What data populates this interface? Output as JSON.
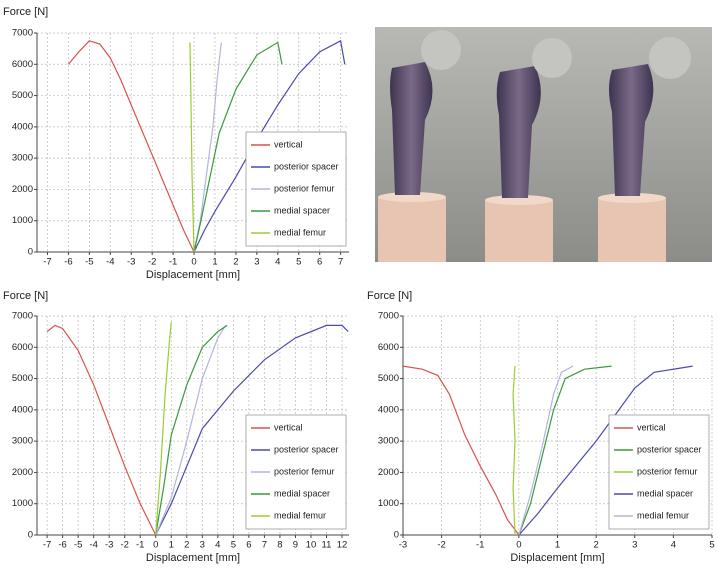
{
  "chart_data": [
    {
      "type": "line",
      "y_label": "Force [N]",
      "x_label": "Displacement [mm]",
      "xlim": [
        -7.5,
        7.4
      ],
      "ylim": [
        0,
        7000
      ],
      "xticks": [
        -7,
        -6,
        -5,
        -4,
        -3,
        -2,
        -1,
        0,
        1,
        2,
        3,
        4,
        5,
        6,
        7
      ],
      "yticks": [
        0,
        1000,
        2000,
        3000,
        4000,
        5000,
        6000,
        7000
      ],
      "grid": true,
      "legend": "lower right",
      "series": [
        {
          "name": "vertical",
          "color": "#d9534f",
          "x": [
            0,
            -0.5,
            -1,
            -1.5,
            -2,
            -2.5,
            -3,
            -3.5,
            -4,
            -4.5,
            -5,
            -5.5,
            -6
          ],
          "values": [
            0,
            700,
            1500,
            2300,
            3100,
            3900,
            4700,
            5500,
            6200,
            6650,
            6750,
            6400,
            6000
          ]
        },
        {
          "name": "posterior spacer",
          "color": "#4a4ab0",
          "x": [
            0,
            0.5,
            1,
            2,
            3,
            4,
            5,
            6,
            7,
            7.2
          ],
          "values": [
            0,
            700,
            1300,
            2400,
            3600,
            4700,
            5700,
            6400,
            6750,
            6000
          ]
        },
        {
          "name": "posterior femur",
          "color": "#b4b4e0",
          "x": [
            0,
            0.3,
            0.6,
            0.9,
            1.1,
            1.3
          ],
          "values": [
            0,
            1000,
            2500,
            4000,
            5500,
            6700
          ]
        },
        {
          "name": "medial spacer",
          "color": "#3a9a3a",
          "x": [
            0,
            0.3,
            0.7,
            1.2,
            2,
            3,
            4,
            4.2
          ],
          "values": [
            0,
            900,
            2200,
            3800,
            5200,
            6300,
            6700,
            6000
          ]
        },
        {
          "name": "medial femur",
          "color": "#9acd32",
          "x": [
            0,
            -0.1,
            -0.15,
            -0.2
          ],
          "values": [
            0,
            2500,
            5000,
            6700
          ]
        }
      ]
    },
    {
      "type": "line",
      "y_label": "Force [N]",
      "x_label": "Displacement [mm]",
      "xlim": [
        -7.65,
        12.45
      ],
      "ylim": [
        0,
        7000
      ],
      "xticks": [
        -7,
        -6,
        -5,
        -4,
        -3,
        -2,
        -1,
        0,
        1,
        2,
        3,
        4,
        5,
        6,
        7,
        8,
        9,
        10,
        11,
        12
      ],
      "yticks": [
        0,
        1000,
        2000,
        3000,
        4000,
        5000,
        6000,
        7000
      ],
      "grid": true,
      "legend": "lower right",
      "series": [
        {
          "name": "vertical",
          "color": "#d9534f",
          "x": [
            0,
            -1,
            -2,
            -3,
            -4,
            -5,
            -6,
            -6.5,
            -7
          ],
          "values": [
            0,
            1000,
            2200,
            3500,
            4800,
            5900,
            6600,
            6700,
            6500
          ]
        },
        {
          "name": "posterior spacer",
          "color": "#4a4ab0",
          "x": [
            0,
            1,
            2,
            3,
            5,
            7,
            9,
            11,
            12,
            12.4
          ],
          "values": [
            0,
            1000,
            2200,
            3400,
            4600,
            5600,
            6300,
            6700,
            6700,
            6500
          ]
        },
        {
          "name": "posterior femur",
          "color": "#b4b4e0",
          "x": [
            0,
            1,
            2,
            3,
            4,
            4.5
          ],
          "values": [
            0,
            1200,
            3000,
            5000,
            6300,
            6700
          ]
        },
        {
          "name": "medial spacer",
          "color": "#3a9a3a",
          "x": [
            0,
            0.5,
            1,
            2,
            3,
            4,
            4.6
          ],
          "values": [
            0,
            1500,
            3200,
            4800,
            6000,
            6500,
            6700
          ]
        },
        {
          "name": "medial femur",
          "color": "#9acd32",
          "x": [
            0,
            0.3,
            0.6,
            0.9,
            1
          ],
          "values": [
            0,
            2000,
            4500,
            6300,
            6800
          ]
        }
      ]
    },
    {
      "type": "line",
      "y_label": "Force [N]",
      "x_label": "Displacement [mm]",
      "xlim": [
        -3,
        5
      ],
      "ylim": [
        0,
        7000
      ],
      "xticks": [
        -3,
        -2,
        -1,
        0,
        1,
        2,
        3,
        4,
        5
      ],
      "yticks": [
        0,
        1000,
        2000,
        3000,
        4000,
        5000,
        6000,
        7000
      ],
      "grid": true,
      "legend": "lower right",
      "series": [
        {
          "name": "vertical",
          "color": "#d9534f",
          "x": [
            0,
            -0.3,
            -0.6,
            -1,
            -1.4,
            -1.8,
            -2.1,
            -2.5,
            -3
          ],
          "values": [
            0,
            500,
            1300,
            2200,
            3200,
            4500,
            5100,
            5300,
            5400
          ]
        },
        {
          "name": "posterior spacer",
          "color": "#3a9a3a",
          "x": [
            0,
            0.3,
            0.6,
            0.9,
            1.2,
            1.7,
            2.4
          ],
          "values": [
            0,
            1000,
            2500,
            4000,
            5000,
            5300,
            5400
          ]
        },
        {
          "name": "posterior femur",
          "color": "#9acd32",
          "x": [
            -0.1,
            -0.15,
            -0.1,
            -0.15,
            -0.1
          ],
          "values": [
            0,
            1500,
            3000,
            4500,
            5400
          ]
        },
        {
          "name": "medial spacer",
          "color": "#4a4ab0",
          "x": [
            0,
            0.5,
            1,
            2,
            3,
            3.5,
            4.5
          ],
          "values": [
            0,
            700,
            1500,
            3000,
            4700,
            5200,
            5400
          ]
        },
        {
          "name": "medial femur",
          "color": "#b4b4e0",
          "x": [
            0,
            0.3,
            0.6,
            0.9,
            1.1,
            1.4
          ],
          "values": [
            0,
            1300,
            2800,
            4500,
            5200,
            5400
          ]
        }
      ]
    }
  ]
}
